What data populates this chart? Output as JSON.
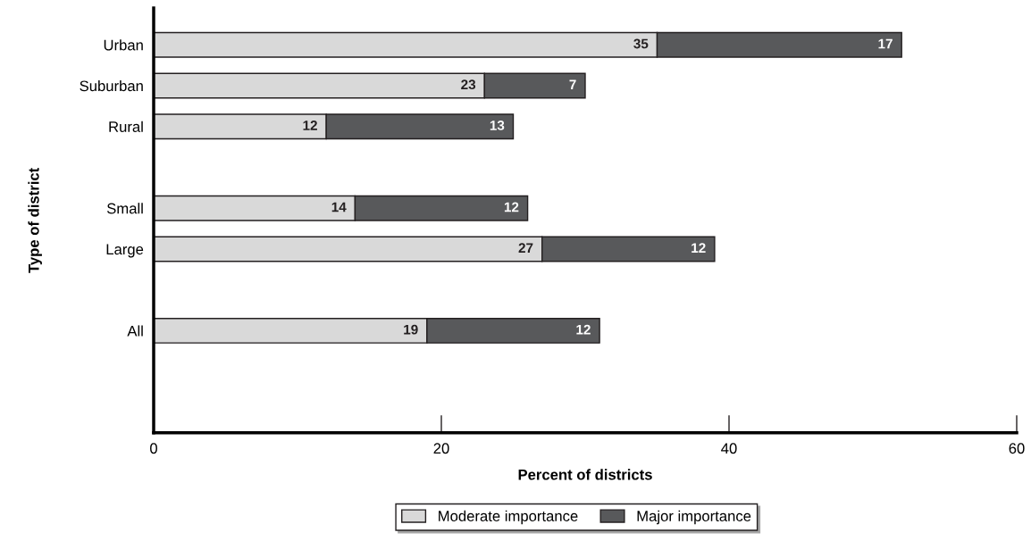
{
  "chart_data": {
    "type": "bar",
    "orientation": "horizontal",
    "stacked": true,
    "categories": [
      "Urban",
      "Suburban",
      "Rural",
      null,
      "Small",
      "Large",
      null,
      "All"
    ],
    "series": [
      {
        "name": "Moderate importance",
        "color": "#d9d9d9",
        "values": [
          35,
          23,
          12,
          null,
          14,
          27,
          null,
          19
        ]
      },
      {
        "name": "Major importance",
        "color": "#58595b",
        "values": [
          17,
          7,
          13,
          null,
          12,
          12,
          null,
          12
        ]
      }
    ],
    "xlim": [
      0,
      60
    ],
    "xticks": [
      0,
      20,
      40,
      60
    ],
    "xlabel": "Percent of districts",
    "ylabel": "Type of district",
    "data_labels": true,
    "legend": "bottom",
    "grid": false
  }
}
